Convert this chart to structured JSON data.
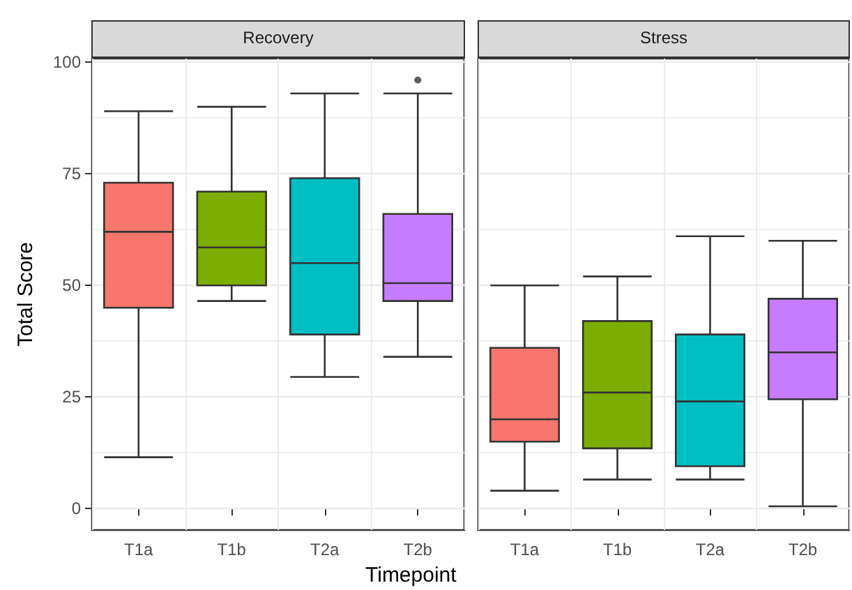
{
  "chart_data": [
    {
      "type": "box",
      "title": "Recovery",
      "ylabel": "Total Score",
      "xlabel": "Timepoint",
      "categories": [
        "T1a",
        "T1b",
        "T2a",
        "T2b"
      ],
      "colors": [
        "#f8766d",
        "#7cae00",
        "#00bfc4",
        "#c77cff"
      ],
      "boxes": [
        {
          "low": 11.5,
          "q1": 45,
          "median": 62,
          "q3": 73,
          "high": 89
        },
        {
          "low": 46.5,
          "q1": 50,
          "median": 58.5,
          "q3": 71,
          "high": 90
        },
        {
          "low": 29.5,
          "q1": 39,
          "median": 55,
          "q3": 74,
          "high": 93
        },
        {
          "low": 34,
          "q1": 46.5,
          "median": 50.5,
          "q3": 66,
          "high": 93,
          "outliers": [
            96
          ]
        }
      ],
      "ylim": [
        -4.8,
        100.8
      ],
      "yticks": [
        0,
        25,
        50,
        75,
        100
      ],
      "grid": true
    },
    {
      "type": "box",
      "title": "Stress",
      "categories": [
        "T1a",
        "T1b",
        "T2a",
        "T2b"
      ],
      "colors": [
        "#f8766d",
        "#7cae00",
        "#00bfc4",
        "#c77cff"
      ],
      "boxes": [
        {
          "low": 4,
          "q1": 15,
          "median": 20,
          "q3": 36,
          "high": 50
        },
        {
          "low": 6.5,
          "q1": 13.5,
          "median": 26,
          "q3": 42,
          "high": 52
        },
        {
          "low": 6.5,
          "q1": 9.5,
          "median": 24,
          "q3": 39,
          "high": 61
        },
        {
          "low": 0.5,
          "q1": 24.5,
          "median": 35,
          "q3": 47,
          "high": 60
        }
      ],
      "ylim": [
        -4.8,
        100.8
      ],
      "yticks": [
        0,
        25,
        50,
        75,
        100
      ],
      "grid": true,
      "tick_labels": "x"
    }
  ]
}
